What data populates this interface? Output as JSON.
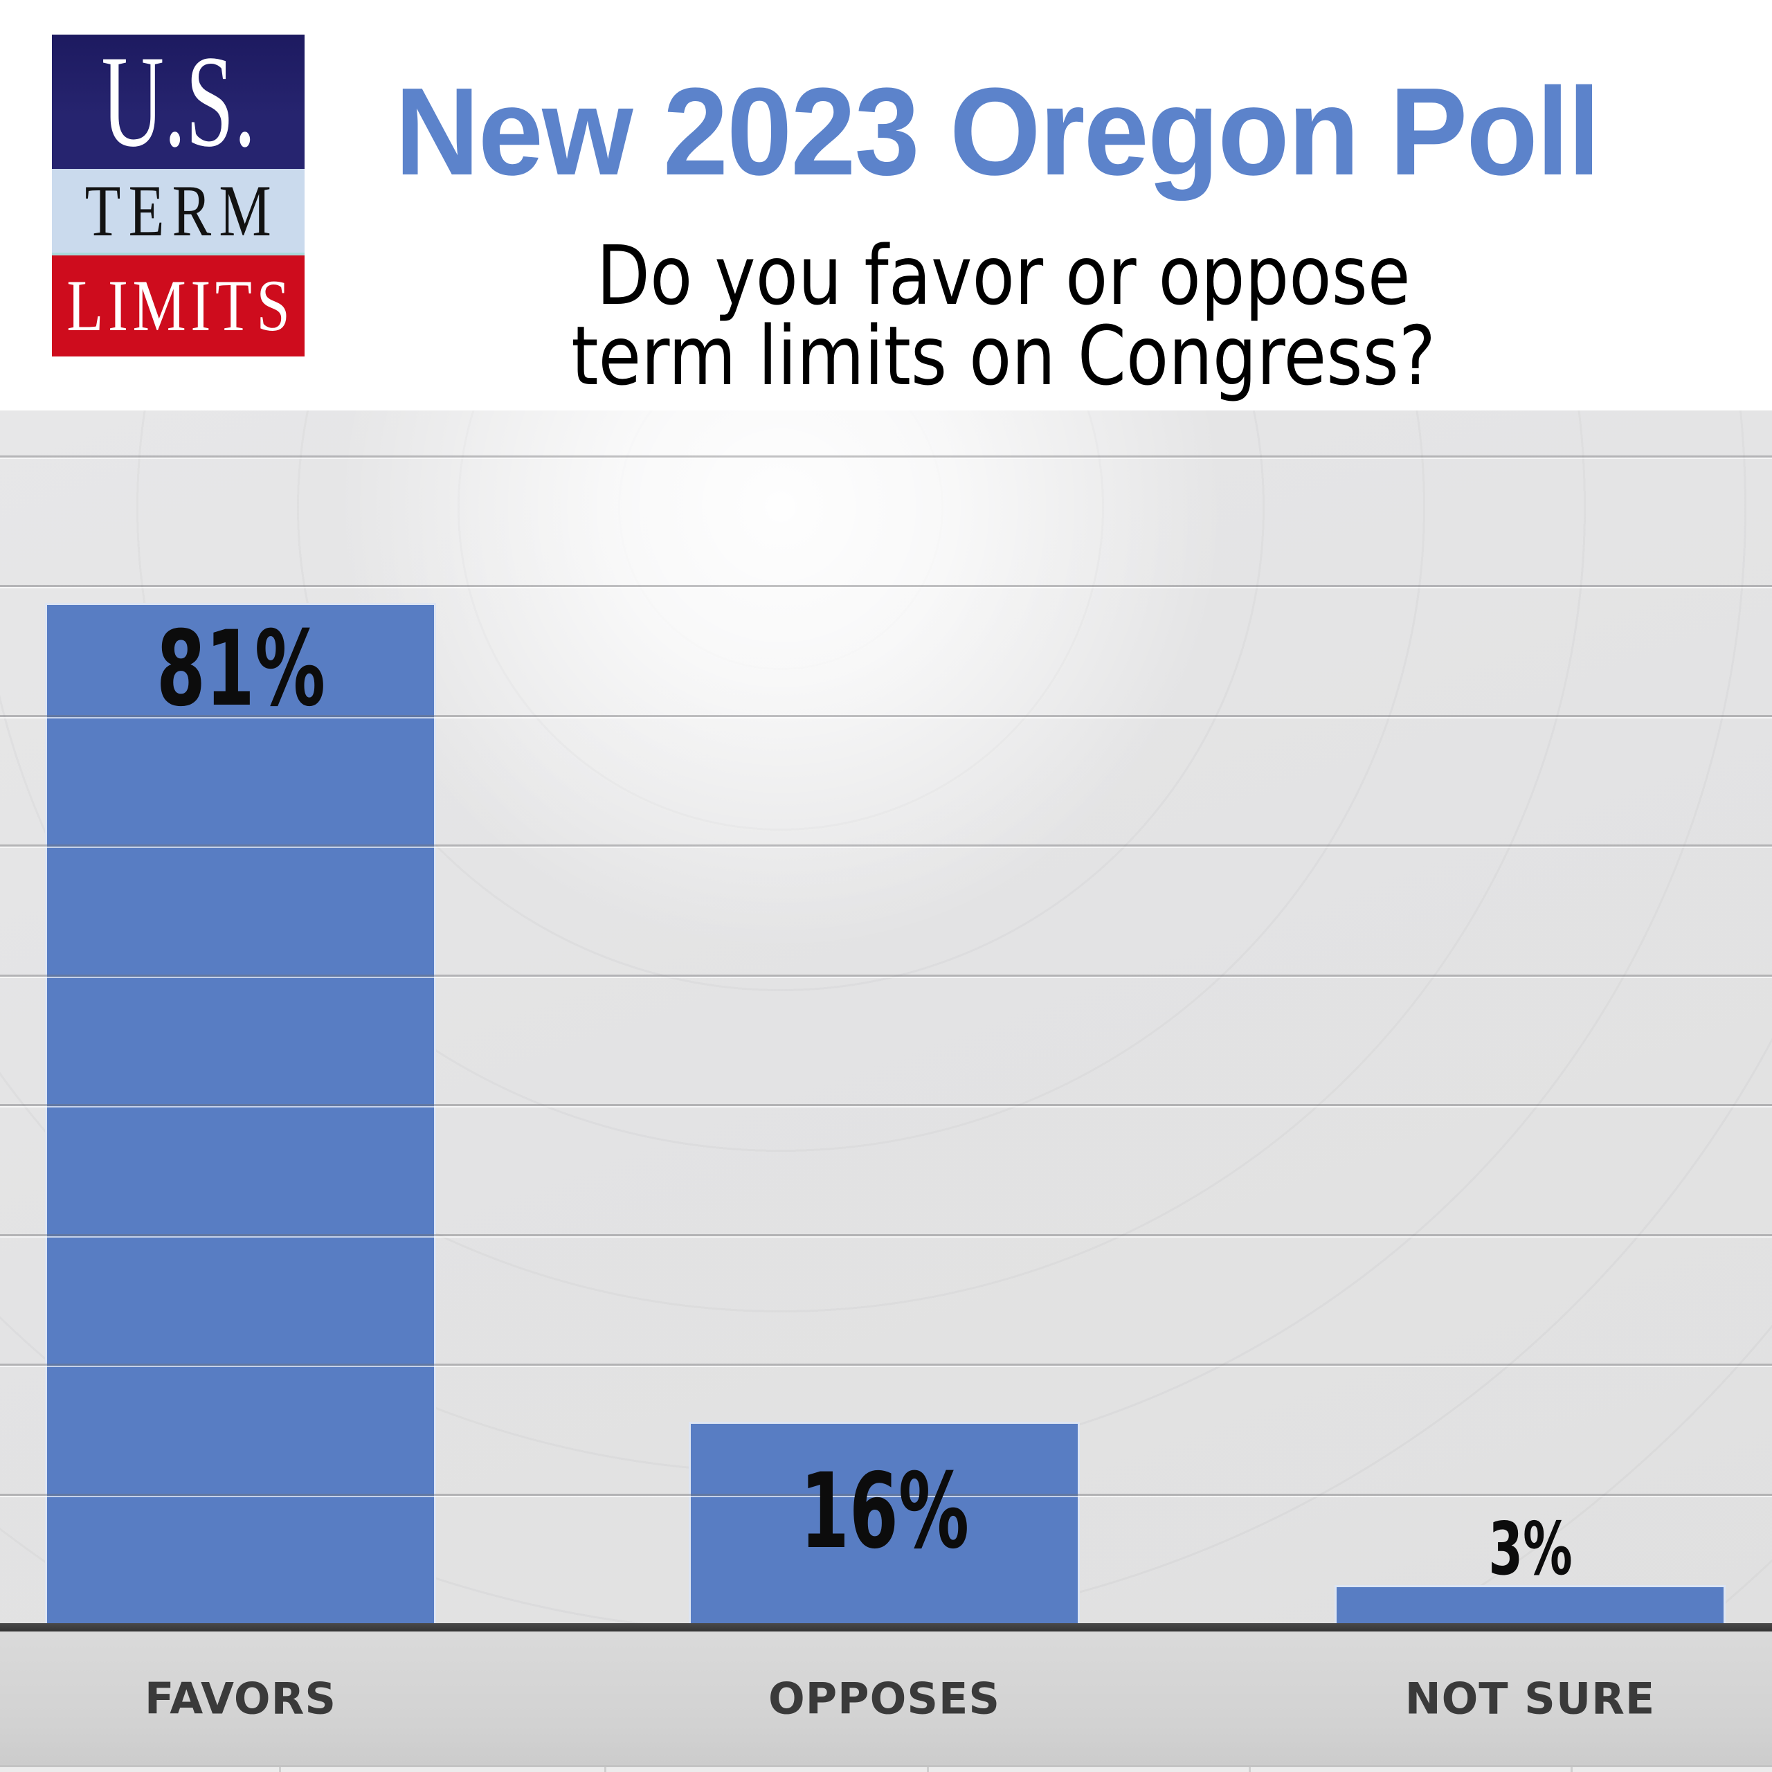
{
  "header": {
    "title": "New 2023 Oregon Poll",
    "title_color": "#5c83cb",
    "question_line1": "Do you favor or oppose",
    "question_line2": "term limits on Congress?"
  },
  "logo": {
    "line1": "U.S.",
    "line2": "TERM",
    "line3": "LIMITS",
    "colors": {
      "navy": "#26246f",
      "light_blue": "#cadaed",
      "red": "#ce0c1d"
    }
  },
  "chart_data": {
    "type": "bar",
    "title": "New 2023 Oregon Poll",
    "subtitle": "Do you favor or oppose term limits on Congress?",
    "categories": [
      "FAVORS",
      "OPPOSES",
      "NOT SURE"
    ],
    "values": [
      81,
      16,
      3
    ],
    "value_labels": [
      "81%",
      "16%",
      "3%"
    ],
    "xlabel": "",
    "ylabel": "",
    "ylim": [
      0,
      100
    ],
    "gridline_interval": 10,
    "grid": true,
    "legend": false,
    "bar_color": "#587dc3",
    "label_color": "#0c0c0c",
    "panel_color": "#e2e2e3"
  }
}
